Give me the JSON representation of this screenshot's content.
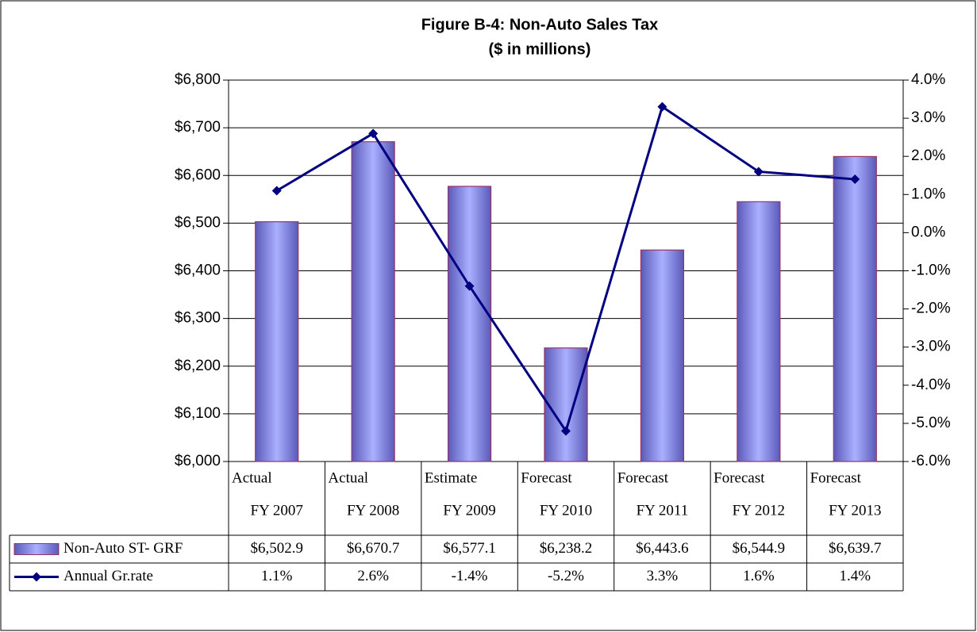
{
  "chart_data": {
    "type": "bar-line",
    "title": "Figure B-4: Non-Auto Sales Tax",
    "subtitle": "($ in millions)",
    "categories": [
      [
        "Actual",
        "FY 2007"
      ],
      [
        "Actual",
        "FY 2008"
      ],
      [
        "Estimate",
        "FY 2009"
      ],
      [
        "Forecast",
        "FY 2010"
      ],
      [
        "Forecast",
        "FY 2011"
      ],
      [
        "Forecast",
        "FY 2012"
      ],
      [
        "Forecast",
        "FY 2013"
      ]
    ],
    "series": [
      {
        "name": "Non-Auto ST- GRF",
        "type": "bar",
        "color": "#9999ff",
        "border": "#993366",
        "values": [
          6502.9,
          6670.7,
          6577.1,
          6238.2,
          6443.6,
          6544.9,
          6639.7
        ],
        "value_labels": [
          "$6,502.9",
          "$6,670.7",
          "$6,577.1",
          "$6,238.2",
          "$6,443.6",
          "$6,544.9",
          "$6,639.7"
        ]
      },
      {
        "name": "Annual Gr.rate",
        "type": "line",
        "axis": "y2",
        "color": "#000080",
        "values": [
          1.1,
          2.6,
          -1.4,
          -5.2,
          3.3,
          1.6,
          1.4
        ],
        "value_labels": [
          "1.1%",
          "2.6%",
          "-1.4%",
          "-5.2%",
          "3.3%",
          "1.6%",
          "1.4%"
        ]
      }
    ],
    "ylim": [
      6000,
      6800
    ],
    "yticks": [
      {
        "value": 6000,
        "label": "$6,000"
      },
      {
        "value": 6100,
        "label": "$6,100"
      },
      {
        "value": 6200,
        "label": "$6,200"
      },
      {
        "value": 6300,
        "label": "$6,300"
      },
      {
        "value": 6400,
        "label": "$6,400"
      },
      {
        "value": 6500,
        "label": "$6,500"
      },
      {
        "value": 6600,
        "label": "$6,600"
      },
      {
        "value": 6700,
        "label": "$6,700"
      },
      {
        "value": 6800,
        "label": "$6,800"
      }
    ],
    "y2lim": [
      -6,
      4
    ],
    "y2ticks": [
      {
        "value": -6,
        "label": "-6.0%"
      },
      {
        "value": -5,
        "label": "-5.0%"
      },
      {
        "value": -4,
        "label": "-4.0%"
      },
      {
        "value": -3,
        "label": "-3.0%"
      },
      {
        "value": -2,
        "label": "-2.0%"
      },
      {
        "value": -1,
        "label": "-1.0%"
      },
      {
        "value": 0,
        "label": "0.0%"
      },
      {
        "value": 1,
        "label": "1.0%"
      },
      {
        "value": 2,
        "label": "2.0%"
      },
      {
        "value": 3,
        "label": "3.0%"
      },
      {
        "value": 4,
        "label": "4.0%"
      }
    ],
    "grid": true
  }
}
